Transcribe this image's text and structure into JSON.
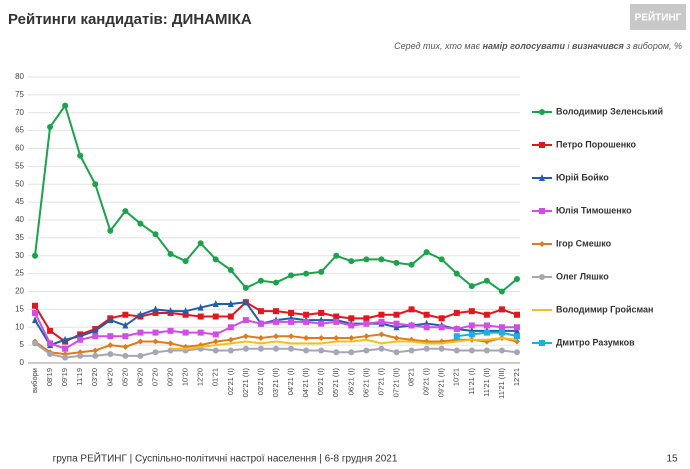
{
  "chart_data": {
    "type": "line",
    "title": "Рейтинги кандидатів: ДИНАМІКА",
    "subtitle": [
      "Серед тих, хто має ",
      "намір голосувати",
      " і ",
      "визначився",
      " з вибором, %"
    ],
    "logo": "РЕЙТИНГ",
    "footer": "група РЕЙТИНГ | Суспільно-політичні настрої населення  | 6-8 грудня 2021",
    "page": "15",
    "categories": [
      "вибори",
      "08'19",
      "09'19",
      "11'19",
      "03'20",
      "04'20",
      "05'20",
      "06'20",
      "07'20",
      "09'20",
      "10'20",
      "12'20",
      "01'21",
      "02'21 (I)",
      "02'21 (II)",
      "03'21 (I)",
      "03'21 (II)",
      "04'21 (I)",
      "04'21 (II)",
      "05'21 (I)",
      "05'21 (II)",
      "06'21 (I)",
      "06'21 (II)",
      "07'21 (I)",
      "07'21 (II)",
      "08'21",
      "09'21 (I)",
      "09'21 (II)",
      "10'21",
      "11'21 (I)",
      "11'21 (II)",
      "11'21 (III)",
      "12'21"
    ],
    "ylim": [
      0,
      80
    ],
    "yticks": [
      0,
      5,
      10,
      15,
      20,
      25,
      30,
      35,
      40,
      45,
      50,
      55,
      60,
      65,
      70,
      75,
      80
    ],
    "grid": true,
    "series": [
      {
        "name": "Володимир Зеленський",
        "color": "#1aa34a",
        "marker": "circle",
        "values": [
          30,
          66,
          72,
          58,
          50,
          37,
          42.5,
          39,
          36,
          30.5,
          28.5,
          33.5,
          29,
          26,
          21,
          23,
          22.5,
          24.5,
          25,
          25.5,
          30,
          28.5,
          29,
          29,
          28,
          27.5,
          31,
          29,
          25,
          21.5,
          23,
          20,
          23.5
        ]
      },
      {
        "name": "Петро Порошенко",
        "color": "#e3161d",
        "marker": "square",
        "values": [
          16,
          9,
          6,
          8,
          9.5,
          12.5,
          13.5,
          13,
          14,
          14,
          13.5,
          13,
          13,
          13,
          17,
          14.5,
          14.5,
          14,
          13.5,
          14,
          13,
          12.5,
          12.5,
          13.5,
          13.5,
          15,
          13.5,
          12.5,
          14,
          14.5,
          13.5,
          15,
          13.5
        ]
      },
      {
        "name": "Юрій Бойко",
        "color": "#1f5fa8",
        "marker": "triangle",
        "values": [
          12,
          5,
          6.5,
          7.5,
          9,
          12,
          10.5,
          13.5,
          15,
          14.5,
          14.5,
          15.5,
          16.5,
          16.5,
          17,
          11,
          12,
          12.5,
          12,
          12,
          12,
          11,
          11,
          11,
          10,
          10.5,
          11,
          10.5,
          9.5,
          9,
          9,
          9,
          9
        ]
      },
      {
        "name": "Юлія Тимошенко",
        "color": "#d24ce6",
        "marker": "square",
        "values": [
          14,
          5.5,
          4,
          6.5,
          7.5,
          7.5,
          7.5,
          8.5,
          8.5,
          9,
          8.5,
          8.5,
          8,
          10,
          12,
          11,
          11.5,
          11.5,
          11.5,
          11,
          11.5,
          10.5,
          11,
          11.5,
          11,
          10.5,
          10,
          10,
          9.5,
          10.5,
          10.5,
          10,
          10
        ]
      },
      {
        "name": "Ігор Смешко",
        "color": "#e07b1a",
        "marker": "diamond",
        "values": [
          6,
          3,
          2.5,
          3,
          3.5,
          5,
          4.5,
          6,
          6,
          5.5,
          4.5,
          5,
          6,
          6.5,
          7.5,
          7,
          7.5,
          7.5,
          7,
          7,
          7,
          7,
          7.5,
          8,
          7,
          6.5,
          6,
          6,
          6.5,
          6.5,
          6,
          7,
          6
        ]
      },
      {
        "name": "Олег Ляшко",
        "color": "#a6a6b8",
        "marker": "circle",
        "values": [
          5.5,
          2.5,
          1.5,
          2,
          2,
          2.5,
          2,
          2,
          3,
          3.5,
          3.5,
          4,
          3.5,
          3.5,
          4,
          4,
          4,
          4,
          3.5,
          3.5,
          3,
          3,
          3.5,
          4,
          3,
          3.5,
          4,
          4,
          3.5,
          3.5,
          3.5,
          3.5,
          3
        ]
      },
      {
        "name": "Володимир Гройсман",
        "color": "#f2c01e",
        "marker": "none",
        "values": [
          null,
          null,
          null,
          null,
          null,
          null,
          null,
          null,
          null,
          4,
          4,
          4.5,
          5,
          5.5,
          6,
          5.5,
          6,
          5.5,
          5.5,
          5.5,
          6,
          6,
          6.5,
          5.5,
          6,
          6,
          5.5,
          5.5,
          6,
          6.5,
          6.5,
          7,
          6.5
        ]
      },
      {
        "name": "Дмитро Разумков",
        "color": "#1ab0e0",
        "marker": "square",
        "values": [
          null,
          null,
          null,
          null,
          null,
          null,
          null,
          null,
          null,
          null,
          null,
          null,
          null,
          null,
          null,
          null,
          null,
          null,
          null,
          null,
          null,
          null,
          null,
          null,
          null,
          null,
          null,
          null,
          7.5,
          8,
          8.5,
          8.5,
          7.5
        ]
      }
    ]
  }
}
